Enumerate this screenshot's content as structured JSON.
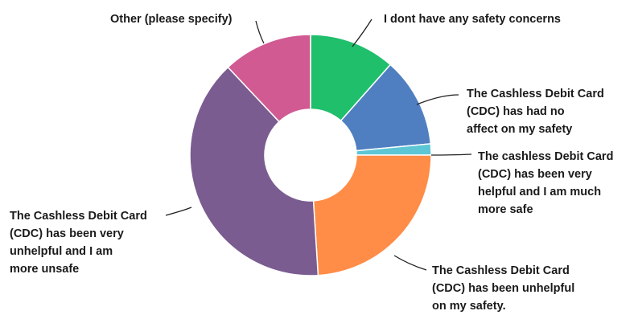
{
  "chart_data": {
    "type": "pie",
    "donut": true,
    "legend": "none",
    "slices": [
      {
        "label": "I dont have any safety concerns",
        "value": 11.5,
        "color": "#1fbf6c"
      },
      {
        "label": "The Cashless Debit Card\n(CDC) has had no\naffect on my safety",
        "value": 12,
        "color": "#4f7fc1"
      },
      {
        "label": "The cashless Debit Card\n(CDC) has been very\nhelpful and I am much\nmore safe",
        "value": 1.5,
        "color": "#5cc6d4"
      },
      {
        "label": "The Cashless Debit Card\n(CDC) has been unhelpful\non my safety.",
        "value": 24,
        "color": "#ff8c47"
      },
      {
        "label": "The Cashless Debit Card\n(CDC) has been very\nunhelpful and I am\nmore unsafe",
        "value": 39,
        "color": "#7a5c90"
      },
      {
        "label": "Other (please specify)",
        "value": 12,
        "color": "#d15a92"
      }
    ]
  }
}
